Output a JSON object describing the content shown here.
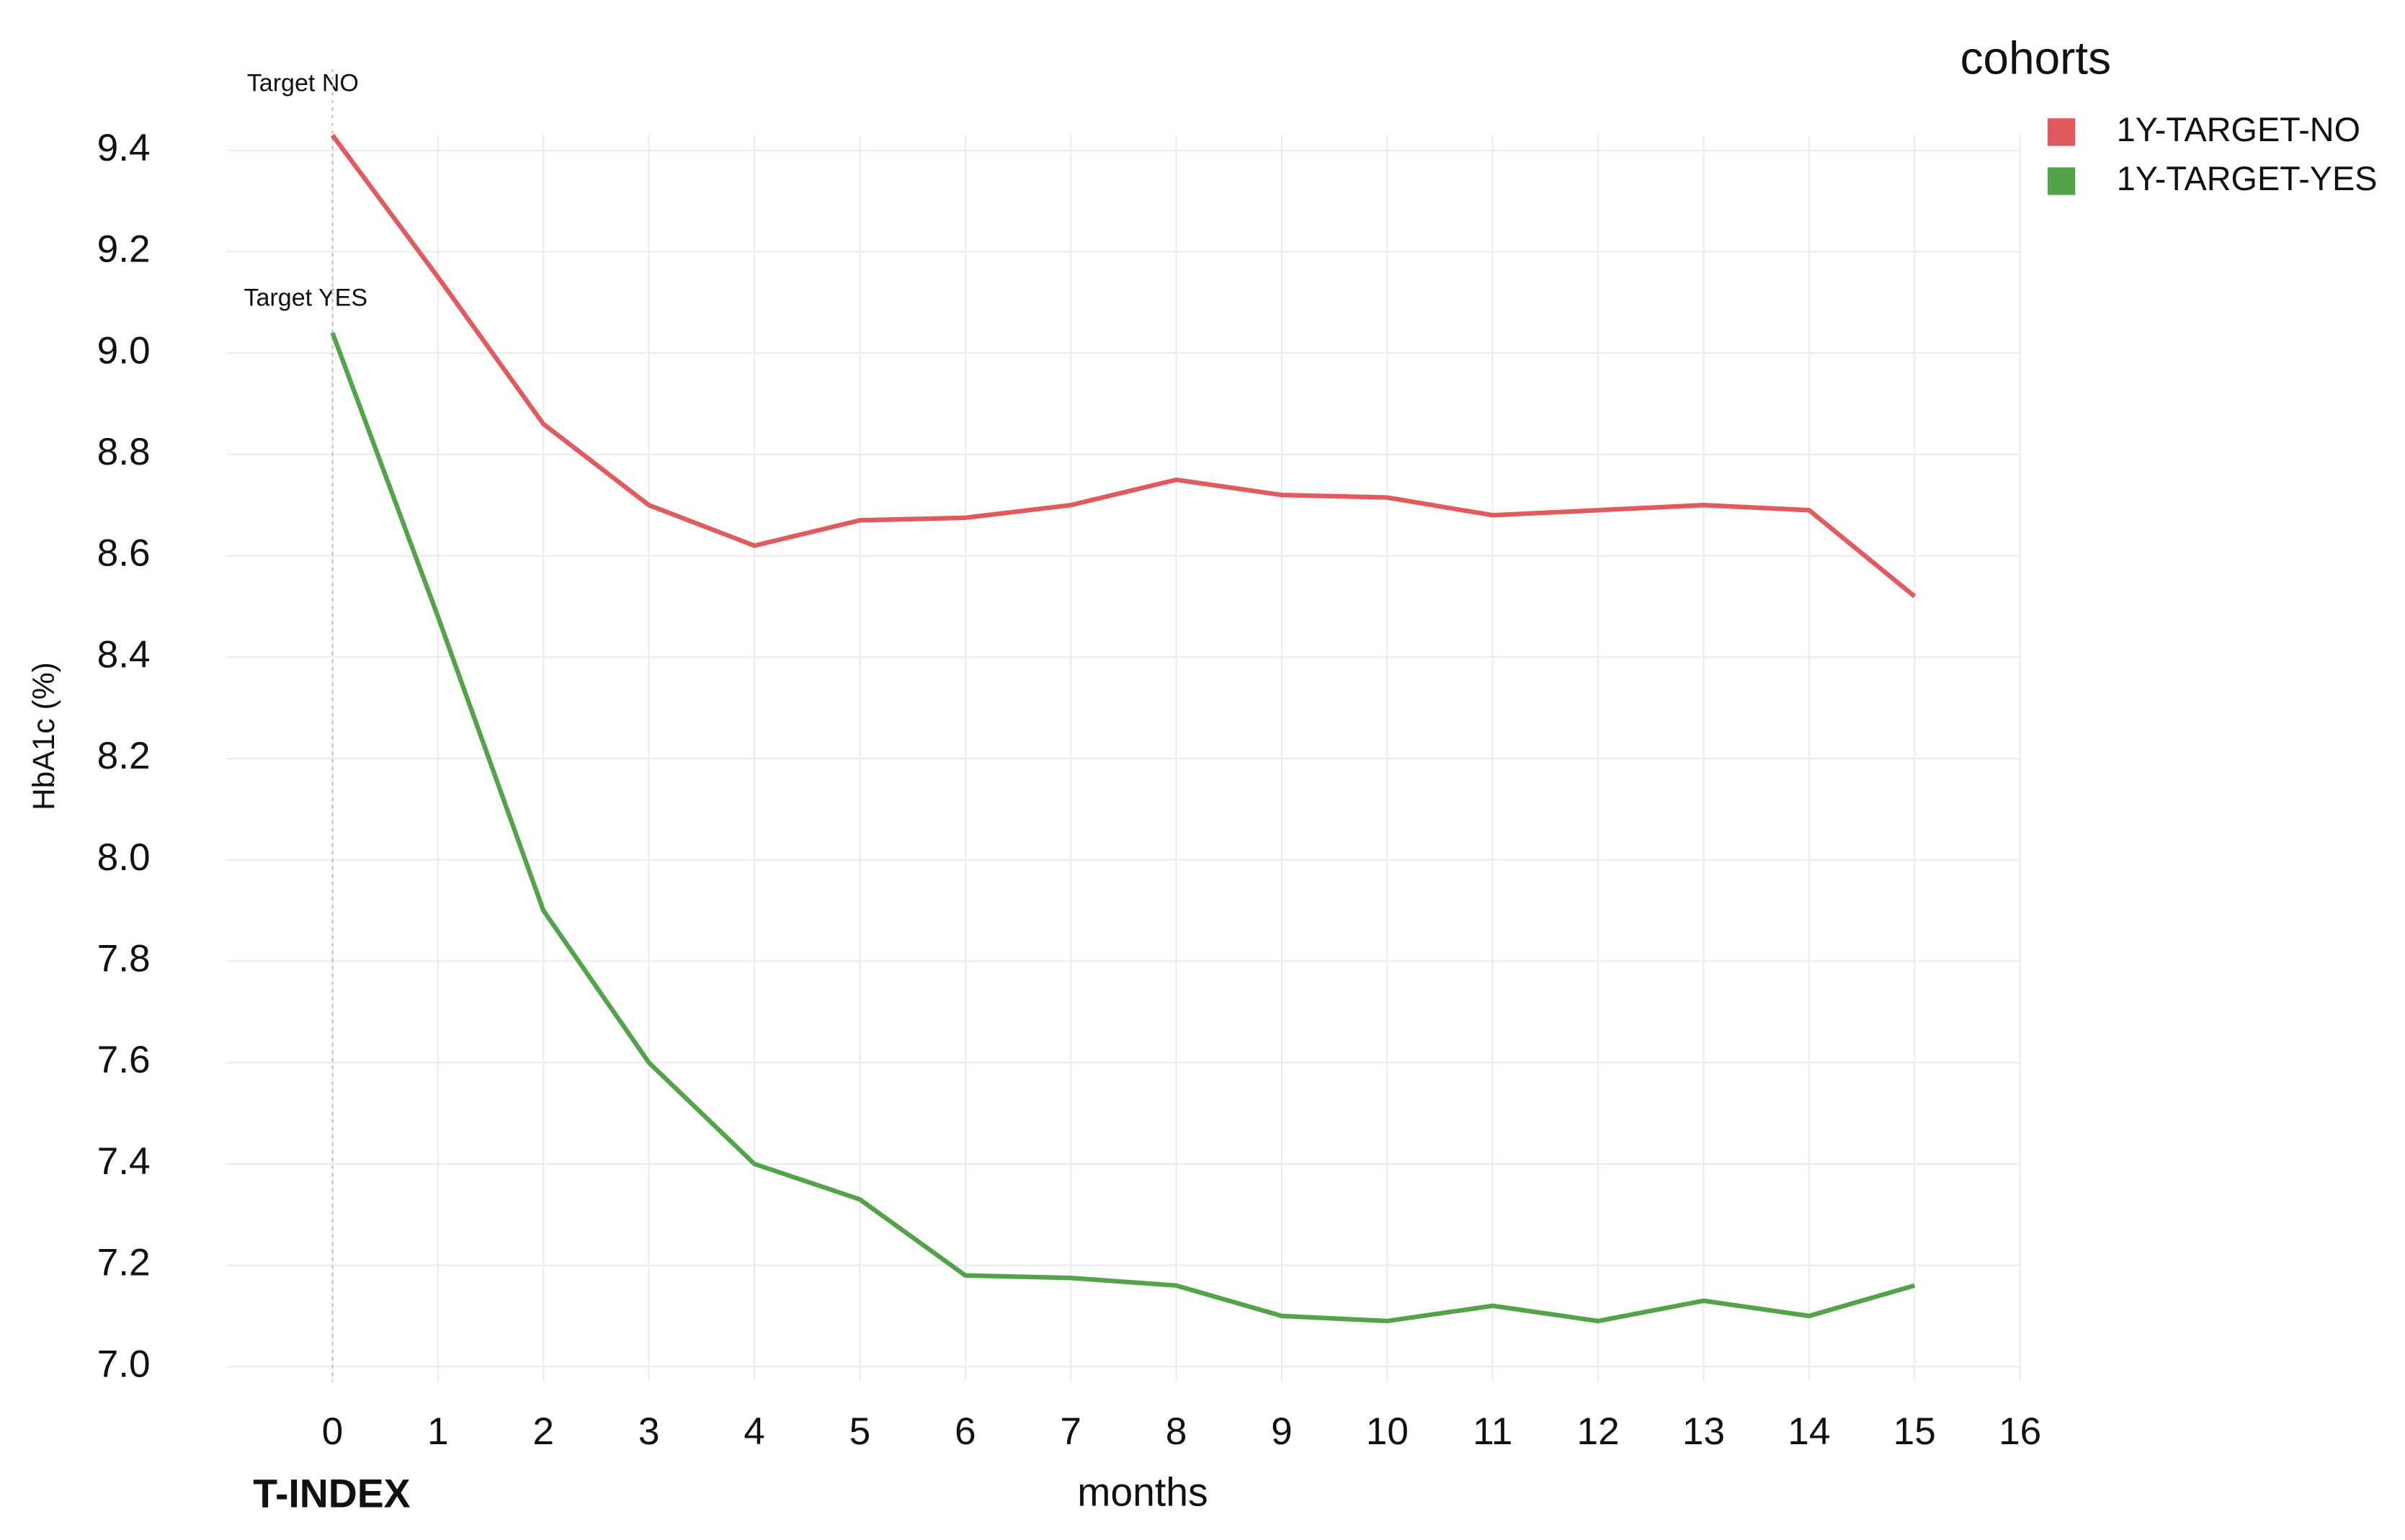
{
  "chart_data": {
    "type": "line",
    "x_label": "months",
    "y_label": "HbA1c (%)",
    "x": [
      0,
      1,
      2,
      3,
      4,
      5,
      6,
      7,
      8,
      9,
      10,
      11,
      12,
      13,
      14,
      15
    ],
    "series": [
      {
        "name": "1Y-TARGET-NO",
        "color": "#e05a5e",
        "values": [
          9.43,
          9.15,
          8.86,
          8.7,
          8.62,
          8.67,
          8.675,
          8.7,
          8.75,
          8.72,
          8.715,
          8.68,
          8.69,
          8.7,
          8.69,
          8.52
        ]
      },
      {
        "name": "1Y-TARGET-YES",
        "color": "#54a34a",
        "values": [
          9.04,
          8.48,
          7.9,
          7.6,
          7.4,
          7.33,
          7.18,
          7.175,
          7.16,
          7.1,
          7.09,
          7.12,
          7.09,
          7.13,
          7.1,
          7.16
        ]
      }
    ],
    "legend_title": "cohorts",
    "legend": "top-right",
    "annotations": [
      "Target NO",
      "Target YES",
      "T-INDEX"
    ],
    "xlim": [
      -1,
      16
    ],
    "xticks": [
      0,
      1,
      2,
      3,
      4,
      5,
      6,
      7,
      8,
      9,
      10,
      11,
      12,
      13,
      14,
      15,
      16
    ],
    "ylim": [
      6.97,
      9.43
    ],
    "yticks": [
      {
        "value": 7,
        "label": "7.0"
      },
      7.2,
      7.4,
      7.6,
      7.8,
      {
        "value": 8,
        "label": "8.0"
      },
      8.2,
      8.4,
      8.6,
      8.8,
      {
        "value": 9,
        "label": "9.0"
      },
      9.2,
      9.4
    ],
    "grid": true
  }
}
